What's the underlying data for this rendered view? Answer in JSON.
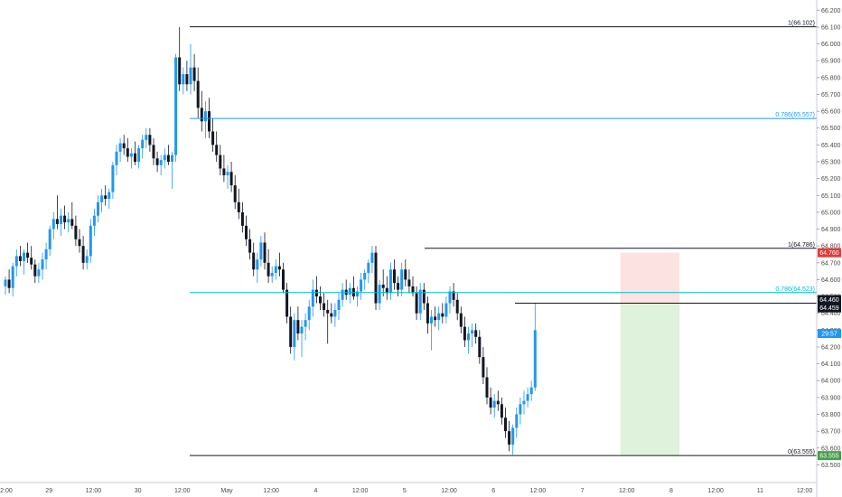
{
  "chart_data": {
    "type": "candlestick",
    "title": "",
    "xlabel": "",
    "ylabel": "",
    "ylim": [
      63.47,
      66.25
    ],
    "colors": {
      "up": "#2196f3",
      "down": "#131722",
      "fib_main": "#131722",
      "fib_786": "#2196f3",
      "fib_786_alt": "#00bcd4",
      "target_zone": "#fde2e2",
      "stop_zone": "#dff2dc",
      "price_tag_blue": "#2196f3",
      "price_tag_red": "#e53935",
      "price_tag_green": "#43a047",
      "price_tag_black": "#131722"
    },
    "y_ticks": [
      "66.200",
      "66.100",
      "66.000",
      "65.900",
      "65.800",
      "65.700",
      "65.600",
      "65.500",
      "65.400",
      "65.300",
      "65.200",
      "65.100",
      "65.000",
      "64.900",
      "64.800",
      "64.700",
      "64.600",
      "64.500",
      "64.400",
      "64.300",
      "64.200",
      "64.100",
      "64.000",
      "63.900",
      "63.800",
      "63.700",
      "63.600",
      "63.500"
    ],
    "y_tick_values": [
      66.2,
      66.1,
      66.0,
      65.9,
      65.8,
      65.7,
      65.6,
      65.5,
      65.4,
      65.3,
      65.2,
      65.1,
      65.0,
      64.9,
      64.8,
      64.7,
      64.6,
      64.5,
      64.4,
      64.3,
      64.2,
      64.1,
      64.0,
      63.9,
      63.8,
      63.7,
      63.6,
      63.5
    ],
    "x_ticks": [
      "12:00",
      "29",
      "12:00",
      "30",
      "12:00",
      "May",
      "12:00",
      "4",
      "12:00",
      "5",
      "12:00",
      "6",
      "12:00",
      "7",
      "12:00",
      "8",
      "12:00",
      "11",
      "12:00"
    ],
    "x_tick_index": [
      0,
      12,
      24,
      36,
      48,
      60,
      72,
      84,
      96,
      108,
      120,
      132,
      144,
      156,
      168,
      180,
      192,
      204,
      216
    ],
    "fib_levels": [
      {
        "label": "1(66.102)",
        "value": 66.102,
        "kind": "main"
      },
      {
        "label": "0.786(65.557)",
        "value": 65.557,
        "kind": "786"
      },
      {
        "label": "1(64.786)",
        "value": 64.786,
        "kind": "main"
      },
      {
        "label": "0.786(64.523)",
        "value": 64.523,
        "kind": "786alt"
      },
      {
        "label": "0(63.555)",
        "value": 63.555,
        "kind": "main"
      }
    ],
    "price_tags": [
      {
        "text": "64.760",
        "value": 64.76,
        "color": "red"
      },
      {
        "text": "64.460",
        "value": 64.46,
        "color": "black"
      },
      {
        "text": "64.459",
        "value": 64.459,
        "color": "black"
      },
      {
        "text": "29:57",
        "value": 64.28,
        "color": "blue"
      },
      {
        "text": "63.555",
        "value": 63.555,
        "color": "green"
      }
    ],
    "position": {
      "entry": 64.46,
      "target": 64.76,
      "stop": 63.555,
      "start_index": 166,
      "end_index": 182
    },
    "candles": [
      [
        64.56,
        64.62,
        64.51,
        64.6
      ],
      [
        64.6,
        64.66,
        64.52,
        64.55
      ],
      [
        64.55,
        64.7,
        64.5,
        64.68
      ],
      [
        64.68,
        64.78,
        64.62,
        64.74
      ],
      [
        64.74,
        64.8,
        64.68,
        64.71
      ],
      [
        64.71,
        64.78,
        64.63,
        64.76
      ],
      [
        64.76,
        64.82,
        64.7,
        64.73
      ],
      [
        64.73,
        64.8,
        64.66,
        64.69
      ],
      [
        64.69,
        64.72,
        64.58,
        64.62
      ],
      [
        64.62,
        64.7,
        64.58,
        64.66
      ],
      [
        64.66,
        64.76,
        64.6,
        64.72
      ],
      [
        64.72,
        64.82,
        64.66,
        64.78
      ],
      [
        64.78,
        64.92,
        64.74,
        64.9
      ],
      [
        64.9,
        65.0,
        64.84,
        64.96
      ],
      [
        64.96,
        65.1,
        64.9,
        64.93
      ],
      [
        64.93,
        65.02,
        64.86,
        64.98
      ],
      [
        64.98,
        65.04,
        64.9,
        64.94
      ],
      [
        64.94,
        65.0,
        64.88,
        64.96
      ],
      [
        64.96,
        65.06,
        64.9,
        64.92
      ],
      [
        64.92,
        64.98,
        64.8,
        64.84
      ],
      [
        64.84,
        64.9,
        64.76,
        64.8
      ],
      [
        64.8,
        64.86,
        64.66,
        64.7
      ],
      [
        64.7,
        64.78,
        64.66,
        64.74
      ],
      [
        64.74,
        64.96,
        64.7,
        64.92
      ],
      [
        64.92,
        65.02,
        64.86,
        64.98
      ],
      [
        64.98,
        65.1,
        64.94,
        65.06
      ],
      [
        65.06,
        65.14,
        65.0,
        65.1
      ],
      [
        65.1,
        65.16,
        65.04,
        65.08
      ],
      [
        65.08,
        65.14,
        65.02,
        65.12
      ],
      [
        65.12,
        65.3,
        65.08,
        65.28
      ],
      [
        65.28,
        65.4,
        65.22,
        65.36
      ],
      [
        65.36,
        65.44,
        65.3,
        65.41
      ],
      [
        65.41,
        65.46,
        65.34,
        65.38
      ],
      [
        65.38,
        65.44,
        65.3,
        65.33
      ],
      [
        65.33,
        65.38,
        65.26,
        65.35
      ],
      [
        65.35,
        65.42,
        65.28,
        65.3
      ],
      [
        65.3,
        65.4,
        65.26,
        65.38
      ],
      [
        65.38,
        65.46,
        65.32,
        65.43
      ],
      [
        65.43,
        65.5,
        65.38,
        65.46
      ],
      [
        65.46,
        65.5,
        65.36,
        65.4
      ],
      [
        65.4,
        65.44,
        65.28,
        65.32
      ],
      [
        65.32,
        65.36,
        65.24,
        65.28
      ],
      [
        65.28,
        65.34,
        65.22,
        65.31
      ],
      [
        65.31,
        65.38,
        65.26,
        65.34
      ],
      [
        65.34,
        65.4,
        65.28,
        65.3
      ],
      [
        65.3,
        65.36,
        65.14,
        65.34
      ],
      [
        65.34,
        65.94,
        65.3,
        65.92
      ],
      [
        65.92,
        66.1,
        65.72,
        65.76
      ],
      [
        65.76,
        65.86,
        65.7,
        65.82
      ],
      [
        65.82,
        65.9,
        65.72,
        65.76
      ],
      [
        65.76,
        66.0,
        65.7,
        65.86
      ],
      [
        65.86,
        65.94,
        65.72,
        65.78
      ],
      [
        65.78,
        65.86,
        65.56,
        65.62
      ],
      [
        65.62,
        65.72,
        65.48,
        65.54
      ],
      [
        65.54,
        65.66,
        65.44,
        65.6
      ],
      [
        65.6,
        65.68,
        65.44,
        65.48
      ],
      [
        65.48,
        65.56,
        65.36,
        65.4
      ],
      [
        65.4,
        65.48,
        65.3,
        65.34
      ],
      [
        65.34,
        65.4,
        65.22,
        65.26
      ],
      [
        65.26,
        65.34,
        65.18,
        65.22
      ],
      [
        65.22,
        65.28,
        65.14,
        65.24
      ],
      [
        65.24,
        65.3,
        65.12,
        65.16
      ],
      [
        65.16,
        65.22,
        65.02,
        65.06
      ],
      [
        65.06,
        65.14,
        64.96,
        65.0
      ],
      [
        65.0,
        65.06,
        64.88,
        64.92
      ],
      [
        64.92,
        64.98,
        64.8,
        64.84
      ],
      [
        64.84,
        64.9,
        64.72,
        64.76
      ],
      [
        64.76,
        64.82,
        64.62,
        64.66
      ],
      [
        64.66,
        64.76,
        64.58,
        64.72
      ],
      [
        64.72,
        64.86,
        64.68,
        64.82
      ],
      [
        64.82,
        64.88,
        64.66,
        64.7
      ],
      [
        64.7,
        64.78,
        64.58,
        64.62
      ],
      [
        64.62,
        64.68,
        64.58,
        64.64
      ],
      [
        64.64,
        64.72,
        64.6,
        64.68
      ],
      [
        64.68,
        64.76,
        64.62,
        64.66
      ],
      [
        64.66,
        64.7,
        64.52,
        64.54
      ],
      [
        64.54,
        64.58,
        64.34,
        64.38
      ],
      [
        64.38,
        64.44,
        64.16,
        64.2
      ],
      [
        64.2,
        64.4,
        64.12,
        64.36
      ],
      [
        64.36,
        64.44,
        64.24,
        64.28
      ],
      [
        64.28,
        64.36,
        64.14,
        64.32
      ],
      [
        64.32,
        64.4,
        64.24,
        64.36
      ],
      [
        64.36,
        64.48,
        64.3,
        64.44
      ],
      [
        64.44,
        64.6,
        64.38,
        64.54
      ],
      [
        64.54,
        64.62,
        64.46,
        64.5
      ],
      [
        64.5,
        64.56,
        64.42,
        64.46
      ],
      [
        64.46,
        64.52,
        64.38,
        64.42
      ],
      [
        64.42,
        64.48,
        64.22,
        64.4
      ],
      [
        64.4,
        64.46,
        64.34,
        64.38
      ],
      [
        64.38,
        64.46,
        64.32,
        64.42
      ],
      [
        64.42,
        64.52,
        64.36,
        64.48
      ],
      [
        64.48,
        64.58,
        64.44,
        64.54
      ],
      [
        64.54,
        64.6,
        64.48,
        64.51
      ],
      [
        64.51,
        64.58,
        64.46,
        64.55
      ],
      [
        64.55,
        64.62,
        64.48,
        64.5
      ],
      [
        64.5,
        64.56,
        64.44,
        64.53
      ],
      [
        64.53,
        64.64,
        64.48,
        64.6
      ],
      [
        64.6,
        64.66,
        64.54,
        64.64
      ],
      [
        64.64,
        64.72,
        64.58,
        64.7
      ],
      [
        64.7,
        64.8,
        64.64,
        64.76
      ],
      [
        64.76,
        64.8,
        64.42,
        64.46
      ],
      [
        64.46,
        64.6,
        64.42,
        64.57
      ],
      [
        64.57,
        64.66,
        64.5,
        64.55
      ],
      [
        64.55,
        64.62,
        64.48,
        64.52
      ],
      [
        64.52,
        64.7,
        64.48,
        64.66
      ],
      [
        64.66,
        64.72,
        64.54,
        64.58
      ],
      [
        64.58,
        64.62,
        64.5,
        64.54
      ],
      [
        64.54,
        64.7,
        64.5,
        64.66
      ],
      [
        64.66,
        64.72,
        64.56,
        64.6
      ],
      [
        64.6,
        64.66,
        64.52,
        64.56
      ],
      [
        64.56,
        64.62,
        64.5,
        64.52
      ],
      [
        64.52,
        64.56,
        64.36,
        64.4
      ],
      [
        64.4,
        64.58,
        64.36,
        64.54
      ],
      [
        64.54,
        64.58,
        64.42,
        64.46
      ],
      [
        64.46,
        64.5,
        64.28,
        64.34
      ],
      [
        64.34,
        64.42,
        64.18,
        64.38
      ],
      [
        64.38,
        64.44,
        64.32,
        64.36
      ],
      [
        64.36,
        64.44,
        64.3,
        64.4
      ],
      [
        64.4,
        64.46,
        64.34,
        64.38
      ],
      [
        64.38,
        64.5,
        64.34,
        64.46
      ],
      [
        64.46,
        64.56,
        64.4,
        64.53
      ],
      [
        64.53,
        64.58,
        64.44,
        64.48
      ],
      [
        64.48,
        64.52,
        64.36,
        64.4
      ],
      [
        64.4,
        64.44,
        64.28,
        64.32
      ],
      [
        64.32,
        64.38,
        64.2,
        64.24
      ],
      [
        64.24,
        64.32,
        64.16,
        64.28
      ],
      [
        64.28,
        64.34,
        64.2,
        64.3
      ],
      [
        64.3,
        64.34,
        64.22,
        64.26
      ],
      [
        64.26,
        64.3,
        64.1,
        64.14
      ],
      [
        64.14,
        64.2,
        63.98,
        64.02
      ],
      [
        64.02,
        64.08,
        63.86,
        63.9
      ],
      [
        63.9,
        63.96,
        63.8,
        63.84
      ],
      [
        63.84,
        63.92,
        63.78,
        63.88
      ],
      [
        63.88,
        63.94,
        63.82,
        63.86
      ],
      [
        63.86,
        63.9,
        63.74,
        63.78
      ],
      [
        63.78,
        63.84,
        63.66,
        63.7
      ],
      [
        63.7,
        63.76,
        63.58,
        63.62
      ],
      [
        63.62,
        63.74,
        63.56,
        63.72
      ],
      [
        63.72,
        63.84,
        63.66,
        63.8
      ],
      [
        63.8,
        63.9,
        63.74,
        63.86
      ],
      [
        63.86,
        63.94,
        63.8,
        63.88
      ],
      [
        63.88,
        63.96,
        63.84,
        63.92
      ],
      [
        63.92,
        64.0,
        63.88,
        63.96
      ],
      [
        63.96,
        64.46,
        63.94,
        64.3
      ]
    ]
  }
}
